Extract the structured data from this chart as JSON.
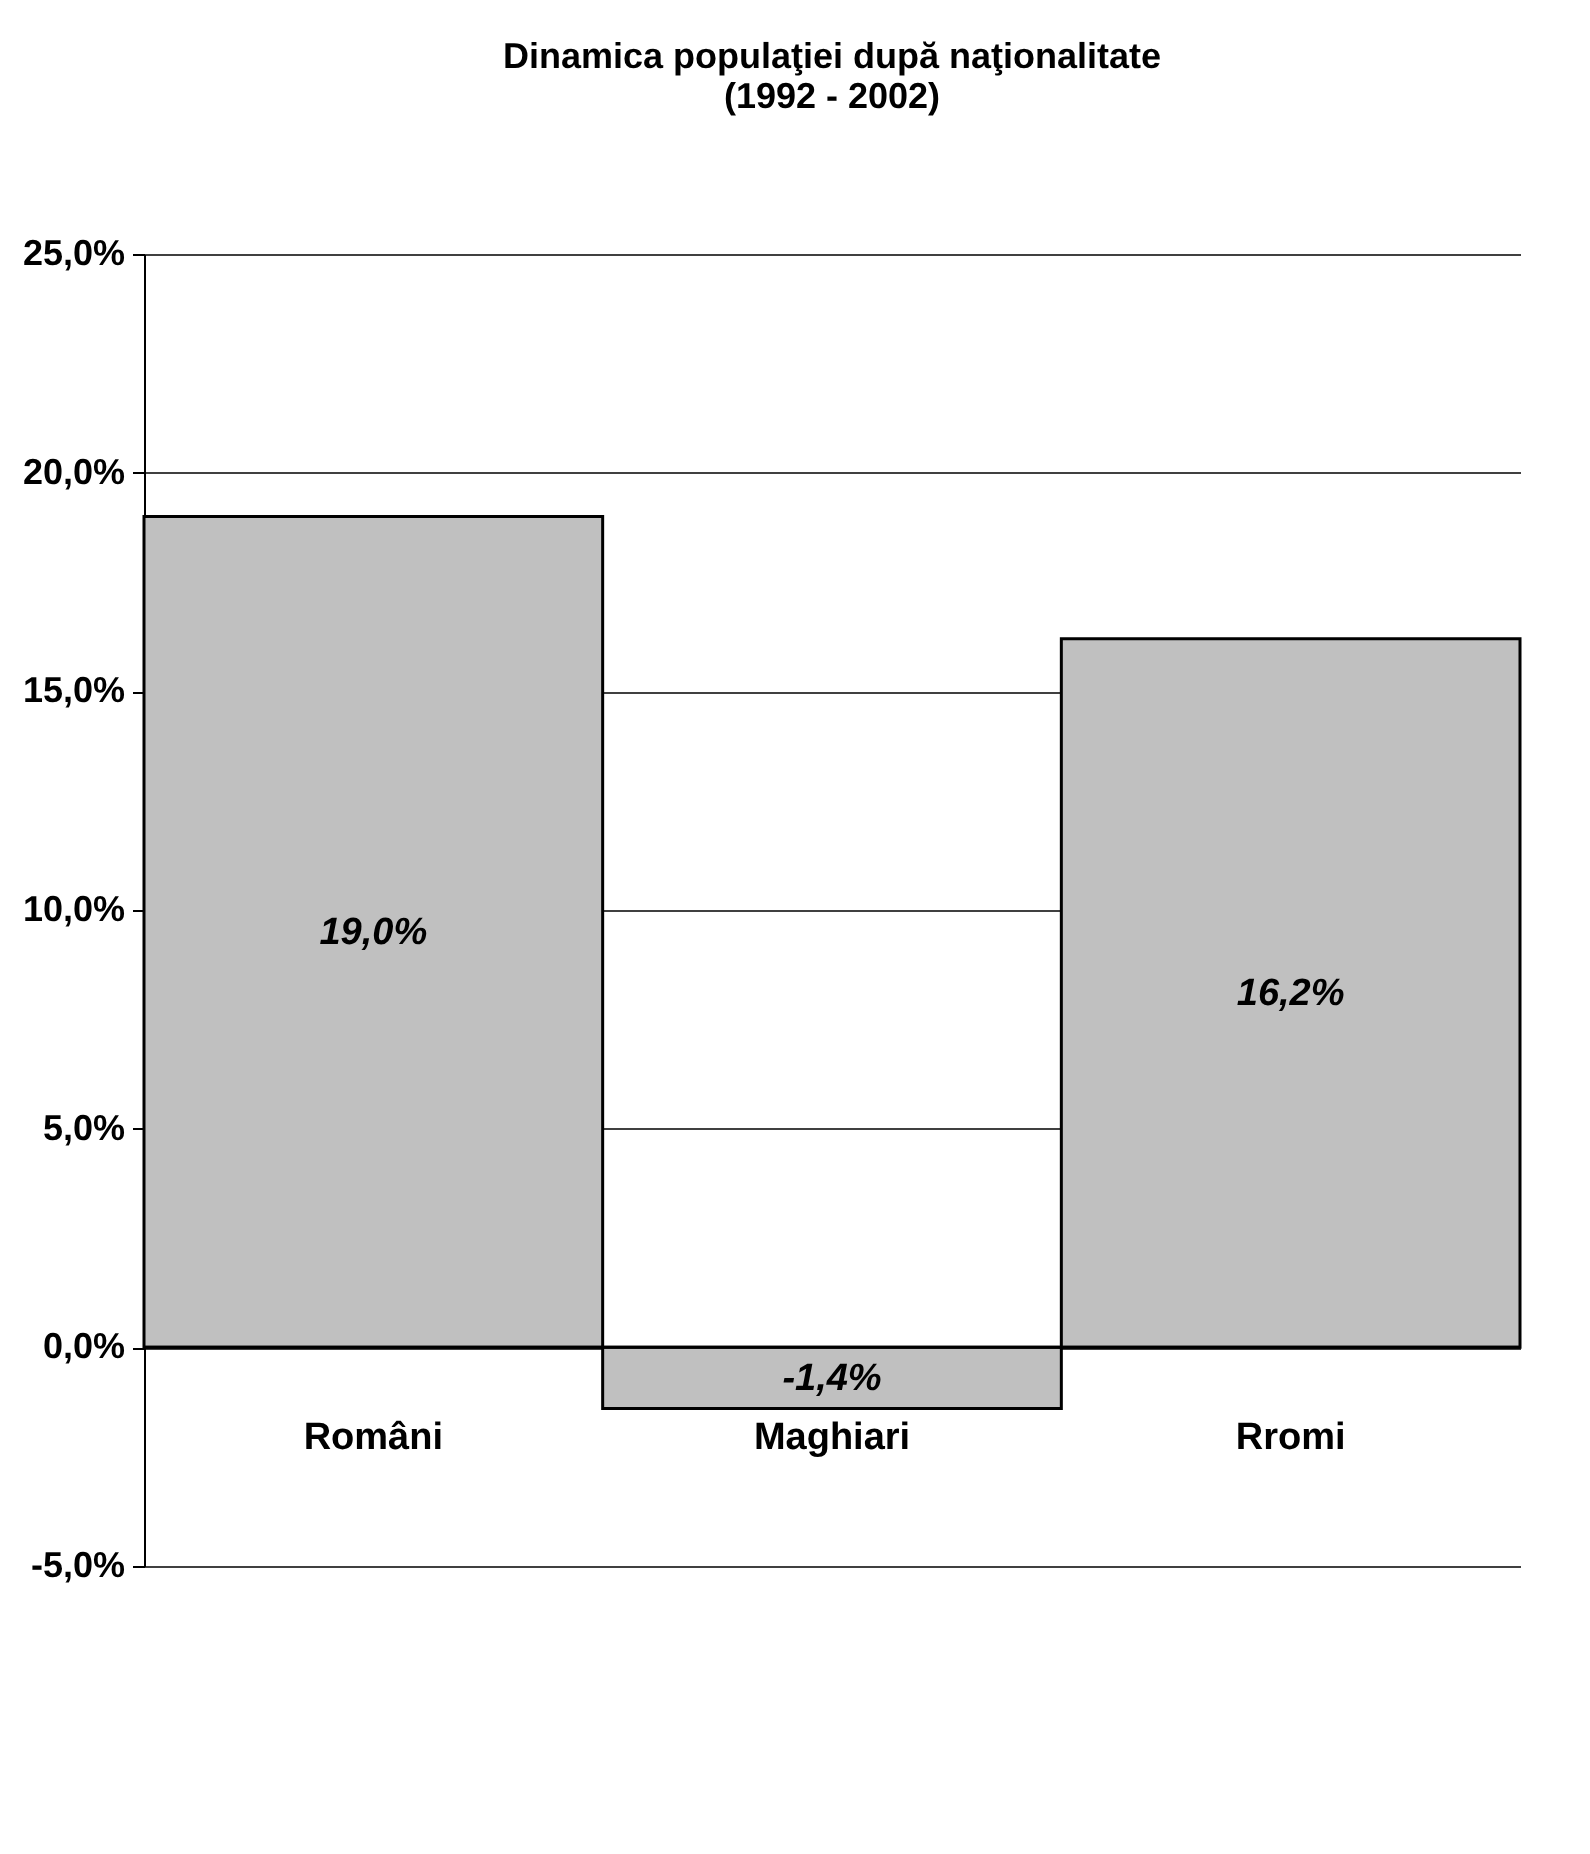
{
  "chart_data": {
    "type": "bar",
    "title": [
      "Dinamica populaţiei după naţionalitate",
      "(1992 - 2002)"
    ],
    "categories": [
      "Români",
      "Maghiari",
      "Rromi"
    ],
    "values": [
      19.0,
      -1.4,
      16.2
    ],
    "value_labels": [
      "19,0%",
      "-1,4%",
      "16,2%"
    ],
    "color": "#c0c0c0",
    "ylim": [
      -5,
      25
    ],
    "yticks": [
      {
        "value": -5,
        "label": "-5,0%"
      },
      {
        "value": 0,
        "label": "0,0%"
      },
      {
        "value": 5,
        "label": "5,0%"
      },
      {
        "value": 10,
        "label": "10,0%"
      },
      {
        "value": 15,
        "label": "15,0%"
      },
      {
        "value": 20,
        "label": "20,0%"
      },
      {
        "value": 25,
        "label": "25,0%"
      }
    ],
    "grid": "y"
  }
}
